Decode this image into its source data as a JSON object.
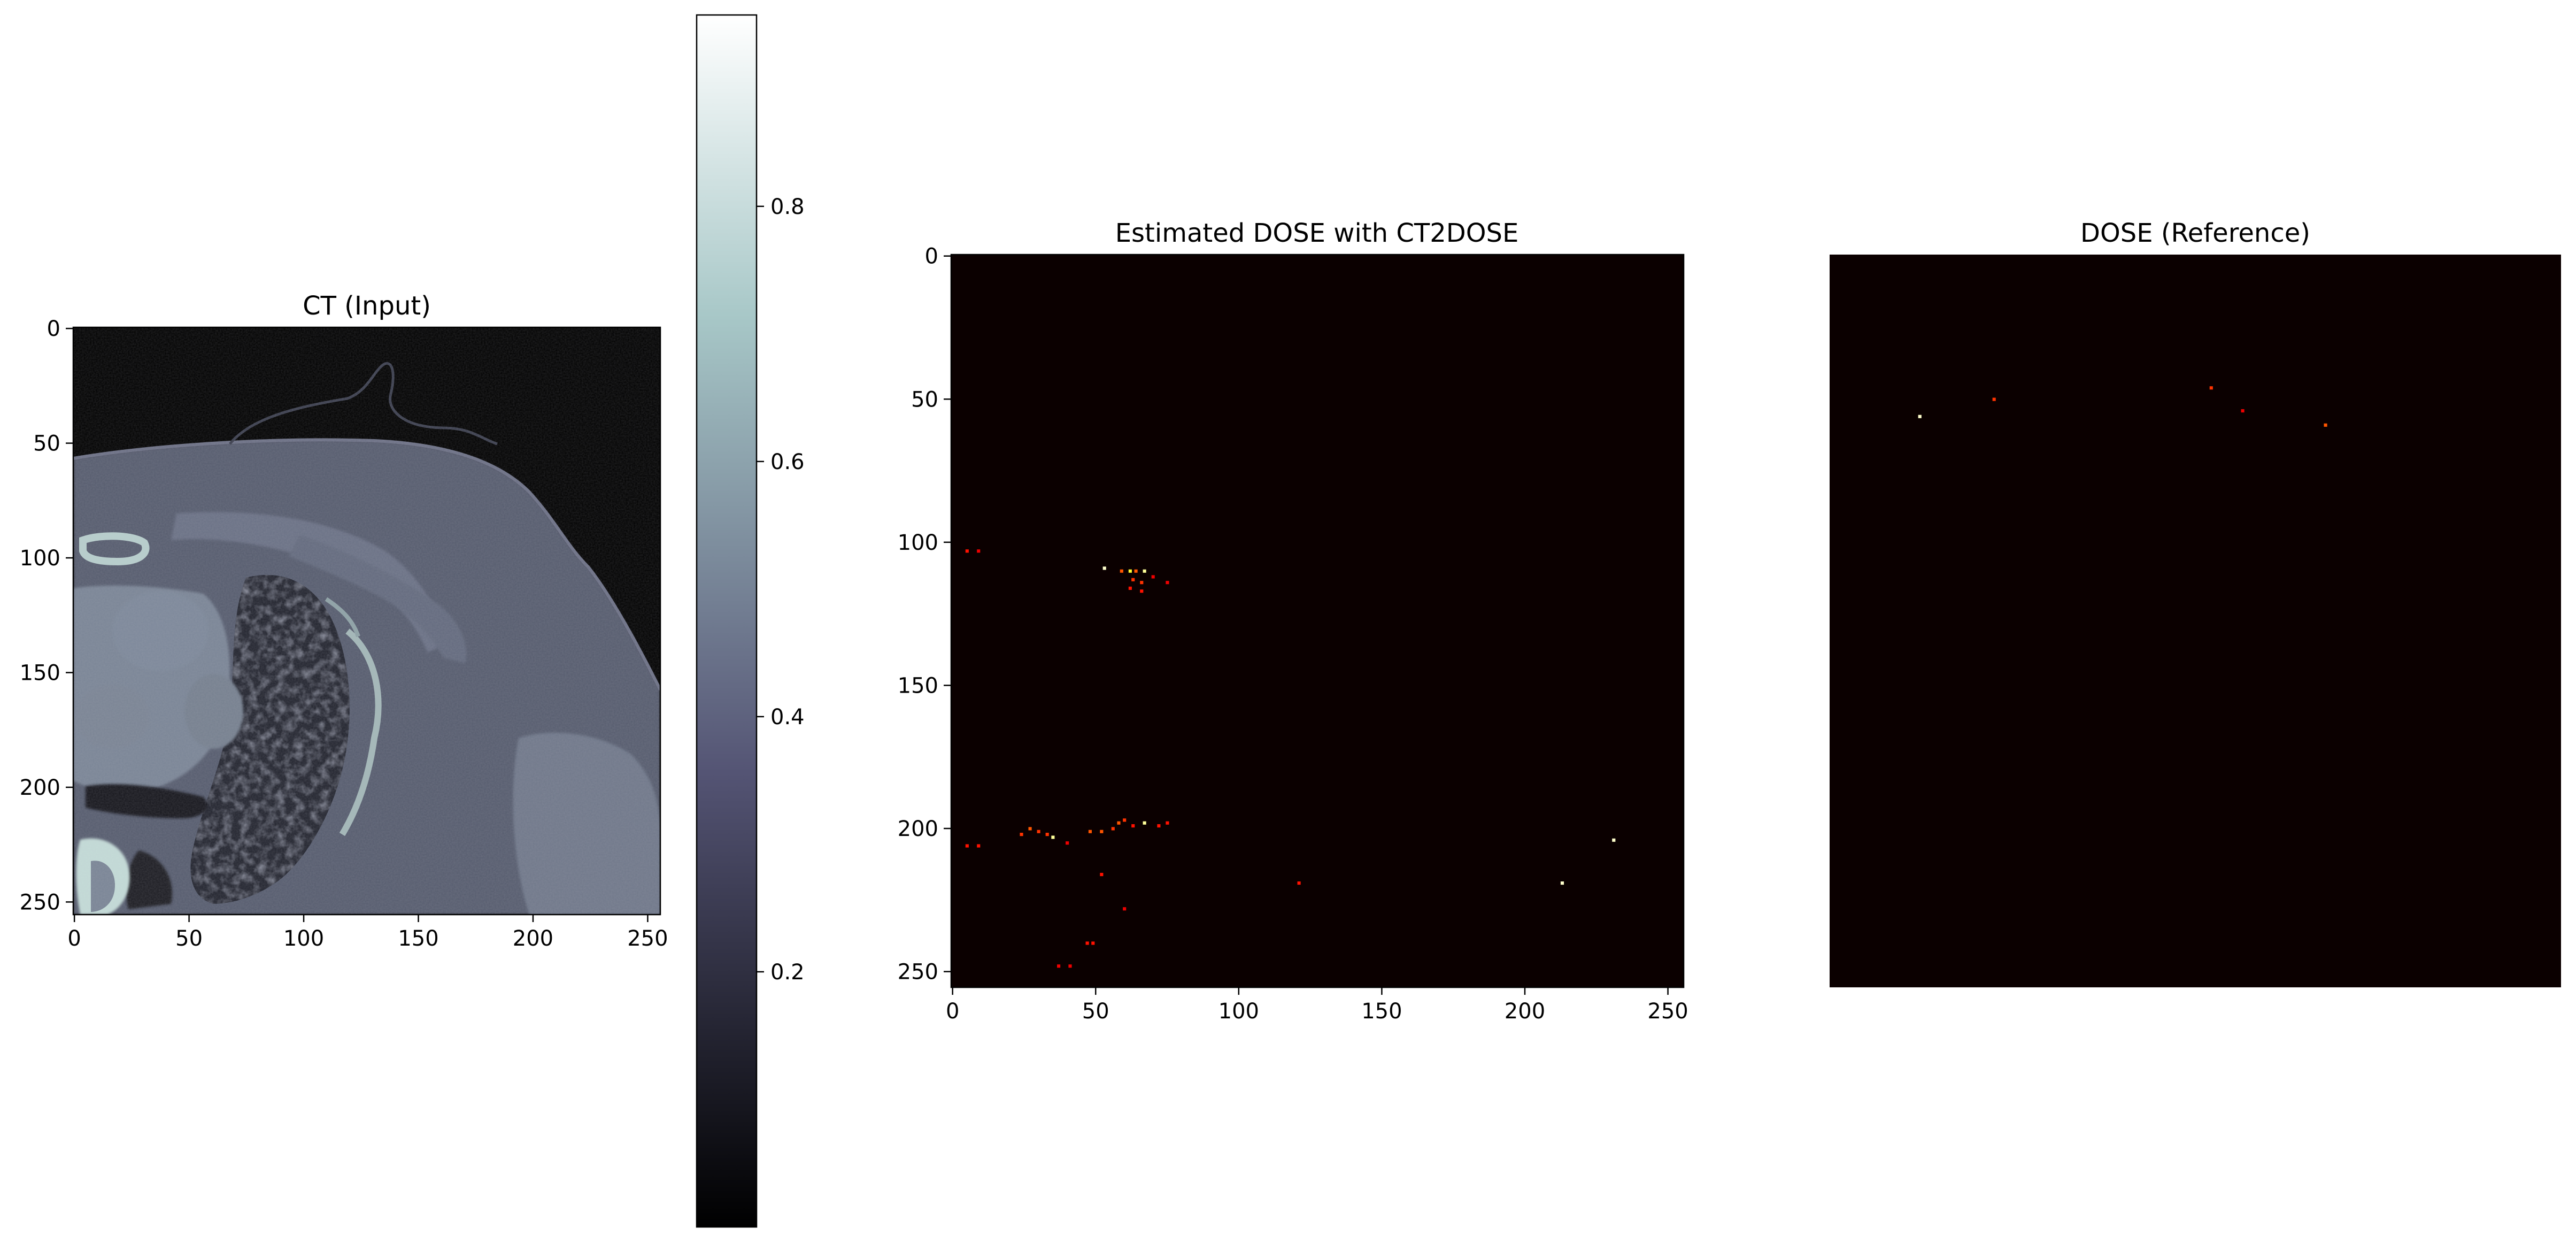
{
  "figure": {
    "background": "#ffffff"
  },
  "chart_data": [
    {
      "type": "heatmap",
      "title": "CT (Input)",
      "image_kind": "axial CT slice of chest (grayscale, bone colormap)",
      "colormap": "bone",
      "image_shape": [
        256,
        256
      ],
      "xlim": [
        0,
        255
      ],
      "ylim": [
        255,
        0
      ],
      "xticks": [
        0,
        50,
        100,
        150,
        200,
        250
      ],
      "yticks": [
        0,
        50,
        100,
        150,
        200,
        250
      ],
      "axes_visible": true,
      "colorbar": {
        "colormap": "bone",
        "range": [
          0.0,
          0.95
        ],
        "ticks": [
          0.2,
          0.4,
          0.6,
          0.8
        ],
        "tick_labels": [
          "0.2",
          "0.4",
          "0.6",
          "0.8"
        ]
      },
      "colors": {
        "background": "#000000",
        "tissue": "#575b6e",
        "organ": "#7a8596",
        "lung": "#2a2c38",
        "bone": "#c4dcd8"
      }
    },
    {
      "type": "heatmap",
      "title": "Estimated DOSE with CT2DOSE",
      "colormap": "hot",
      "image_shape": [
        256,
        256
      ],
      "xlim": [
        0,
        255
      ],
      "ylim": [
        255,
        0
      ],
      "xticks": [
        0,
        50,
        100,
        150,
        200,
        250
      ],
      "yticks": [
        0,
        50,
        100,
        150,
        200,
        250
      ],
      "axes_visible": true,
      "background_color": "#0b0000",
      "hot_pixels": [
        {
          "x": 5,
          "y": 103,
          "v": 0.4
        },
        {
          "x": 9,
          "y": 103,
          "v": 0.35
        },
        {
          "x": 53,
          "y": 109,
          "v": 0.95
        },
        {
          "x": 59,
          "y": 110,
          "v": 0.5
        },
        {
          "x": 62,
          "y": 110,
          "v": 0.8
        },
        {
          "x": 64,
          "y": 110,
          "v": 0.5
        },
        {
          "x": 67,
          "y": 110,
          "v": 0.9
        },
        {
          "x": 63,
          "y": 113,
          "v": 0.45
        },
        {
          "x": 66,
          "y": 114,
          "v": 0.45
        },
        {
          "x": 62,
          "y": 116,
          "v": 0.4
        },
        {
          "x": 66,
          "y": 117,
          "v": 0.4
        },
        {
          "x": 70,
          "y": 112,
          "v": 0.35
        },
        {
          "x": 75,
          "y": 114,
          "v": 0.35
        },
        {
          "x": 5,
          "y": 206,
          "v": 0.4
        },
        {
          "x": 9,
          "y": 206,
          "v": 0.4
        },
        {
          "x": 24,
          "y": 202,
          "v": 0.45
        },
        {
          "x": 27,
          "y": 200,
          "v": 0.5
        },
        {
          "x": 30,
          "y": 201,
          "v": 0.45
        },
        {
          "x": 33,
          "y": 202,
          "v": 0.45
        },
        {
          "x": 35,
          "y": 203,
          "v": 0.9
        },
        {
          "x": 40,
          "y": 205,
          "v": 0.35
        },
        {
          "x": 48,
          "y": 201,
          "v": 0.5
        },
        {
          "x": 52,
          "y": 201,
          "v": 0.5
        },
        {
          "x": 56,
          "y": 200,
          "v": 0.45
        },
        {
          "x": 58,
          "y": 198,
          "v": 0.5
        },
        {
          "x": 60,
          "y": 197,
          "v": 0.45
        },
        {
          "x": 63,
          "y": 199,
          "v": 0.4
        },
        {
          "x": 67,
          "y": 198,
          "v": 0.9
        },
        {
          "x": 72,
          "y": 199,
          "v": 0.4
        },
        {
          "x": 75,
          "y": 198,
          "v": 0.4
        },
        {
          "x": 52,
          "y": 216,
          "v": 0.4
        },
        {
          "x": 60,
          "y": 228,
          "v": 0.35
        },
        {
          "x": 47,
          "y": 240,
          "v": 0.4
        },
        {
          "x": 49,
          "y": 240,
          "v": 0.4
        },
        {
          "x": 37,
          "y": 248,
          "v": 0.35
        },
        {
          "x": 41,
          "y": 248,
          "v": 0.35
        },
        {
          "x": 121,
          "y": 219,
          "v": 0.4
        },
        {
          "x": 213,
          "y": 219,
          "v": 0.95
        },
        {
          "x": 231,
          "y": 204,
          "v": 0.95
        }
      ]
    },
    {
      "type": "heatmap",
      "title": "DOSE (Reference)",
      "colormap": "hot",
      "image_shape": [
        256,
        256
      ],
      "axes_visible": false,
      "background_color": "#0b0000",
      "hot_pixels": [
        {
          "x": 31,
          "y": 56,
          "v": 0.95
        },
        {
          "x": 57,
          "y": 50,
          "v": 0.45
        },
        {
          "x": 133,
          "y": 46,
          "v": 0.45
        },
        {
          "x": 144,
          "y": 54,
          "v": 0.35
        },
        {
          "x": 173,
          "y": 59,
          "v": 0.5
        }
      ]
    }
  ]
}
